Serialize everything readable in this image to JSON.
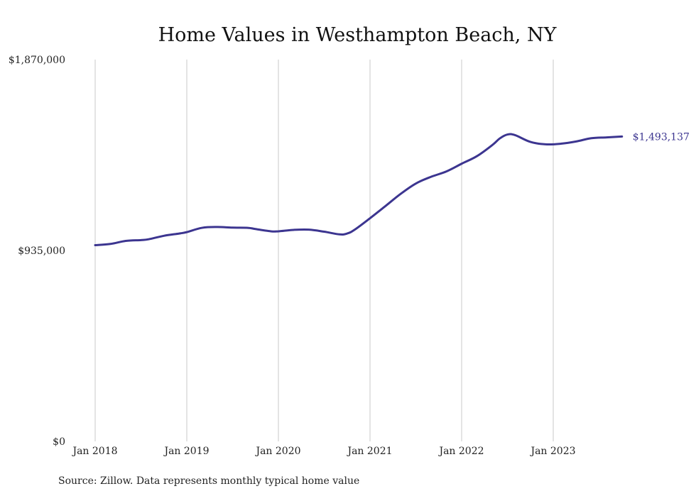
{
  "chart_data": {
    "type": "line",
    "title": "Home Values in Westhampton Beach, NY",
    "source": "Source: Zillow. Data represents monthly typical home value",
    "xlabel": "",
    "ylabel": "",
    "y_ticks": [
      {
        "value": 0,
        "label": "$0"
      },
      {
        "value": 935000,
        "label": "$935,000"
      },
      {
        "value": 1870000,
        "label": "$1,870,000"
      }
    ],
    "x_ticks": [
      {
        "value": "2018-01",
        "label": "Jan 2018"
      },
      {
        "value": "2019-01",
        "label": "Jan 2019"
      },
      {
        "value": "2020-01",
        "label": "Jan 2020"
      },
      {
        "value": "2021-01",
        "label": "Jan 2021"
      },
      {
        "value": "2022-01",
        "label": "Jan 2022"
      },
      {
        "value": "2023-01",
        "label": "Jan 2023"
      }
    ],
    "ylim": [
      0,
      1870000
    ],
    "xlim": [
      "2018-01",
      "2023-12"
    ],
    "grid": {
      "vertical": true,
      "horizontal": false
    },
    "legend": "none",
    "series": [
      {
        "color": "#3c3590",
        "end_label": "$1,493,137",
        "points": [
          {
            "x": "2018-01",
            "y": 961000
          },
          {
            "x": "2018-03",
            "y": 967000
          },
          {
            "x": "2018-05",
            "y": 982000
          },
          {
            "x": "2018-07",
            "y": 986000
          },
          {
            "x": "2018-08",
            "y": 990000
          },
          {
            "x": "2018-10",
            "y": 1007000
          },
          {
            "x": "2018-12",
            "y": 1018000
          },
          {
            "x": "2019-01",
            "y": 1025000
          },
          {
            "x": "2019-03",
            "y": 1046000
          },
          {
            "x": "2019-05",
            "y": 1050000
          },
          {
            "x": "2019-07",
            "y": 1047000
          },
          {
            "x": "2019-09",
            "y": 1046000
          },
          {
            "x": "2019-10",
            "y": 1040000
          },
          {
            "x": "2019-12",
            "y": 1029000
          },
          {
            "x": "2020-01",
            "y": 1029000
          },
          {
            "x": "2020-03",
            "y": 1036000
          },
          {
            "x": "2020-05",
            "y": 1037000
          },
          {
            "x": "2020-07",
            "y": 1027000
          },
          {
            "x": "2020-09",
            "y": 1014000
          },
          {
            "x": "2020-10",
            "y": 1018000
          },
          {
            "x": "2020-11",
            "y": 1037000
          },
          {
            "x": "2021-01",
            "y": 1093000
          },
          {
            "x": "2021-03",
            "y": 1152000
          },
          {
            "x": "2021-05",
            "y": 1212000
          },
          {
            "x": "2021-07",
            "y": 1263000
          },
          {
            "x": "2021-09",
            "y": 1296000
          },
          {
            "x": "2021-11",
            "y": 1322000
          },
          {
            "x": "2022-01",
            "y": 1360000
          },
          {
            "x": "2022-03",
            "y": 1397000
          },
          {
            "x": "2022-05",
            "y": 1451000
          },
          {
            "x": "2022-06",
            "y": 1484000
          },
          {
            "x": "2022-07",
            "y": 1503000
          },
          {
            "x": "2022-08",
            "y": 1500000
          },
          {
            "x": "2022-10",
            "y": 1467000
          },
          {
            "x": "2022-12",
            "y": 1455000
          },
          {
            "x": "2023-02",
            "y": 1458000
          },
          {
            "x": "2023-04",
            "y": 1469000
          },
          {
            "x": "2023-06",
            "y": 1485000
          },
          {
            "x": "2023-08",
            "y": 1489000
          },
          {
            "x": "2023-10",
            "y": 1493137
          }
        ]
      }
    ]
  }
}
